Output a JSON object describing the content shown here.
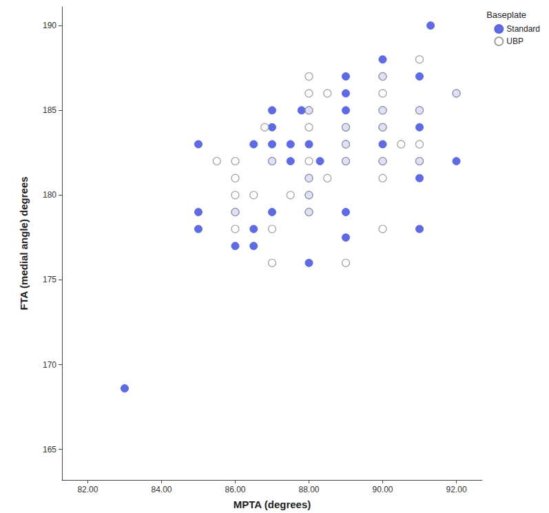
{
  "chart_data": {
    "type": "scatter",
    "x_label": "MPTA (degrees)",
    "y_label": "FTA (medial angle) degrees",
    "legend_title": "Baseplate",
    "legend": "top-right",
    "grid": false,
    "xlim": [
      81.3,
      92.7
    ],
    "xticks": [
      {
        "value": 82,
        "label": "82.00"
      },
      {
        "value": 84,
        "label": "84.00"
      },
      {
        "value": 86,
        "label": "86.00"
      },
      {
        "value": 88,
        "label": "88.00"
      },
      {
        "value": 90,
        "label": "90.00"
      },
      {
        "value": 92,
        "label": "92.00"
      }
    ],
    "ylim": [
      163.2,
      191.1
    ],
    "yticks": [
      165,
      170,
      175,
      180,
      185,
      190
    ],
    "series": [
      {
        "name": "Standard",
        "color": "#5663e0",
        "marker": "filled",
        "x": [
          91.3,
          90,
          90,
          89,
          91,
          92,
          89,
          87,
          87.8,
          88,
          89,
          90,
          91,
          87,
          89,
          90,
          91,
          85,
          86.5,
          87,
          87.5,
          88,
          89,
          90,
          87,
          87.5,
          88.3,
          89,
          90,
          91,
          92,
          88,
          91,
          88,
          85,
          86,
          87,
          88,
          89,
          85,
          86.5,
          91,
          86,
          86.5,
          89,
          88,
          83
        ],
        "values": [
          190,
          188,
          187,
          187,
          187,
          186,
          186,
          185,
          185,
          185,
          185,
          185,
          185,
          184,
          184,
          184,
          184,
          183,
          183,
          183,
          183,
          183,
          183,
          183,
          182,
          182,
          182,
          182,
          182,
          182,
          182,
          181,
          181,
          180,
          179,
          179,
          179,
          179,
          179,
          178,
          178,
          178,
          177,
          177,
          177.5,
          176,
          168.6
        ]
      },
      {
        "name": "UBP",
        "color": "#8a8a8a",
        "marker": "hollow",
        "x": [
          91,
          88,
          88,
          88.5,
          90,
          86.8,
          88,
          89,
          90,
          88,
          90,
          91,
          90,
          85.5,
          86,
          87,
          88,
          89,
          90,
          91,
          90.5,
          91,
          89,
          86,
          88,
          88.5,
          90,
          86,
          86.5,
          87.5,
          88,
          86,
          88,
          86,
          87,
          90,
          87,
          89,
          92
        ],
        "values": [
          188,
          187,
          186,
          186,
          186,
          184,
          184,
          184,
          184,
          185,
          185,
          185,
          187,
          182,
          182,
          182,
          182,
          182,
          182,
          182,
          183,
          183,
          183,
          181,
          181,
          181,
          181,
          180,
          180,
          180,
          180,
          179,
          179,
          178,
          178,
          178,
          176,
          176,
          186
        ]
      }
    ]
  }
}
